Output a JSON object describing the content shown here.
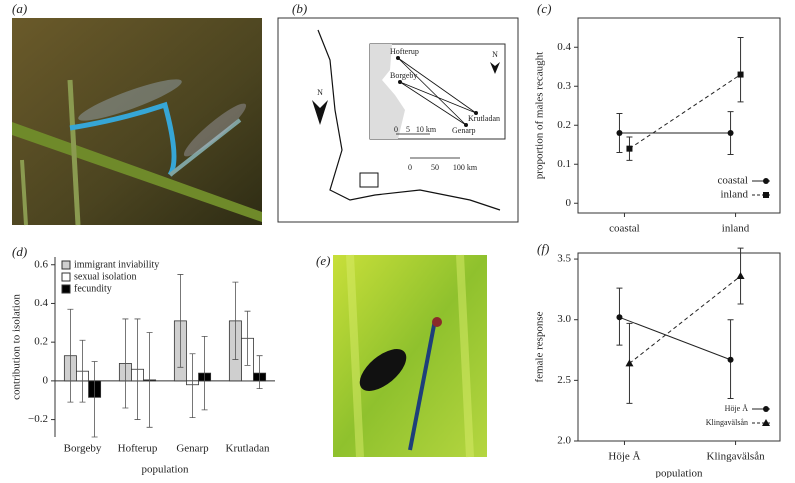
{
  "panel_labels": [
    "(a)",
    "(b)",
    "(c)",
    "(d)",
    "(e)",
    "(f)"
  ],
  "map": {
    "places": [
      "Hofterup",
      "Borgeby",
      "Krutladan",
      "Genarp"
    ],
    "north": "N",
    "inset_scale": [
      "0",
      "5",
      "10 km"
    ],
    "scale": [
      "0",
      "50",
      "100 km"
    ]
  },
  "chart_data": [
    {
      "type": "line",
      "ylabel": "proportion of males recaught",
      "categories": [
        "coastal",
        "inland"
      ],
      "series": [
        {
          "name": "coastal",
          "color": "#222",
          "marker": "circle",
          "linestyle": "solid",
          "values": [
            0.18,
            0.18
          ],
          "ci": [
            [
              0.13,
              0.23
            ],
            [
              0.125,
              0.235
            ]
          ]
        },
        {
          "name": "inland",
          "color": "#222",
          "marker": "square",
          "linestyle": "dashed",
          "values": [
            0.14,
            0.33
          ],
          "ci": [
            [
              0.11,
              0.17
            ],
            [
              0.26,
              0.425
            ]
          ]
        }
      ],
      "ylim": [
        -0.025,
        0.475
      ],
      "yticks": [
        0,
        0.1,
        0.2,
        0.3,
        0.4
      ],
      "legend": "lower right"
    },
    {
      "type": "bar",
      "ylabel": "contribution to isolation",
      "xlabel": "population",
      "categories": [
        "Borgeby",
        "Hofterup",
        "Genarp",
        "Krutladan"
      ],
      "series": [
        {
          "name": "immigrant inviability",
          "color": "#cfcfcf",
          "values": [
            0.13,
            0.09,
            0.31,
            0.31
          ],
          "ci": [
            [
              -0.11,
              0.37
            ],
            [
              -0.14,
              0.32
            ],
            [
              0.07,
              0.55
            ],
            [
              0.11,
              0.51
            ]
          ]
        },
        {
          "name": "sexual isolation",
          "color": "#ffffff",
          "values": [
            0.05,
            0.06,
            -0.02,
            0.22
          ],
          "ci": [
            [
              -0.11,
              0.21
            ],
            [
              -0.2,
              0.32
            ],
            [
              -0.19,
              0.14
            ],
            [
              0.08,
              0.36
            ]
          ]
        },
        {
          "name": "fecundity",
          "color": "#000000",
          "values": [
            -0.085,
            0.005,
            0.04,
            0.04
          ],
          "ci": [
            [
              -0.29,
              0.1
            ],
            [
              -0.24,
              0.25
            ],
            [
              -0.15,
              0.23
            ],
            [
              -0.04,
              0.13
            ]
          ]
        }
      ],
      "ylim": [
        -0.29,
        0.64
      ],
      "yticks": [
        {
          "value": -0.2,
          "label": "−0.2"
        },
        0,
        0.2,
        0.4,
        0.6
      ],
      "legend": "upper left"
    },
    {
      "type": "line",
      "ylabel": "female response",
      "xlabel": "population",
      "categories": [
        "Höje Å",
        "Klingavälsån"
      ],
      "series": [
        {
          "name": "Höje Å",
          "color": "#222",
          "marker": "circle",
          "linestyle": "solid",
          "values": [
            3.02,
            2.67
          ],
          "ci": [
            [
              2.79,
              3.26
            ],
            [
              2.35,
              3.0
            ]
          ]
        },
        {
          "name": "Klingavälsån",
          "color": "#222",
          "marker": "triangle",
          "linestyle": "dashed",
          "values": [
            2.64,
            3.36
          ],
          "ci": [
            [
              2.31,
              2.97
            ],
            [
              3.13,
              3.59
            ]
          ]
        }
      ],
      "ylim": [
        2.0,
        3.55
      ],
      "yticks": [
        {
          "value": 2.0,
          "label": "2.0"
        },
        {
          "value": 2.5,
          "label": "2.5"
        },
        {
          "value": 3.0,
          "label": "3.0"
        },
        {
          "value": 3.5,
          "label": "3.5"
        }
      ],
      "legend": "lower right"
    }
  ]
}
